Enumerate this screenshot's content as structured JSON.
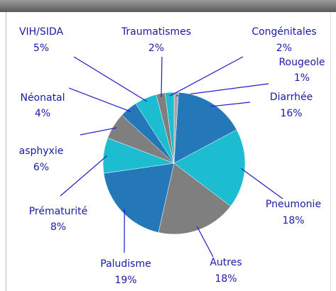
{
  "chart_data": {
    "type": "pie",
    "categories": [
      "Rougeole",
      "Diarrhée",
      "Pneumonie",
      "Autres",
      "Paludisme",
      "Prématurité",
      "asphyxie",
      "Néonatal",
      "VIH/SIDA",
      "Traumatismes",
      "Congénitales"
    ],
    "values": [
      1,
      16,
      18,
      18,
      19,
      8,
      6,
      4,
      5,
      2,
      2
    ],
    "value_labels": [
      "1%",
      "16%",
      "18%",
      "18%",
      "19%",
      "8%",
      "6%",
      "4%",
      "5%",
      "2%",
      "2%"
    ],
    "colors": [
      "#a6a6a6",
      "#2478b8",
      "#1cbdd0",
      "#7f7f7f",
      "#2478b8",
      "#1cbdd0",
      "#7f7f7f",
      "#2478b8",
      "#1cbdd0",
      "#7f7f7f",
      "#1cbdd0"
    ]
  }
}
